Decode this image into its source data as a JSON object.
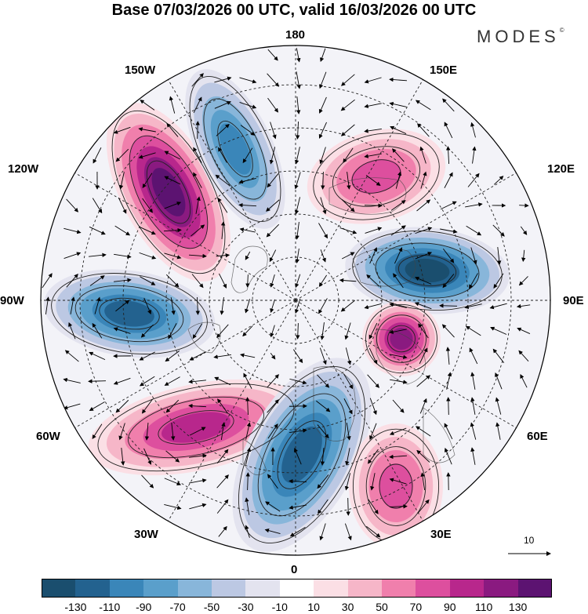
{
  "title": "Base 07/03/2026 00 UTC, valid 16/03/2026 00 UTC",
  "brand": "MODES",
  "brand_mark": "©",
  "longitude_labels": {
    "top": "180",
    "top_left": "150W",
    "top_right": "150E",
    "upper_left": "120W",
    "upper_right": "120E",
    "left": "90W",
    "right": "90E",
    "lower_left": "60W",
    "lower_right": "60E",
    "bottom_left": "30W",
    "bottom_right": "30E",
    "bottom": "0"
  },
  "wind_reference_label": "10",
  "colorbar": {
    "ticks": [
      "-130",
      "-110",
      "-90",
      "-70",
      "-50",
      "-30",
      "-10",
      "10",
      "30",
      "50",
      "70",
      "90",
      "110",
      "130"
    ],
    "colors": [
      "#1a4e6e",
      "#23628f",
      "#3a86b9",
      "#5a9fcb",
      "#88b6da",
      "#bcc8e3",
      "#e3e3ef",
      "#ffffff",
      "#fbdfe5",
      "#f6b6c8",
      "#f07fac",
      "#dd4f9e",
      "#b8278c",
      "#8a1a80",
      "#5c1371"
    ]
  },
  "map_features": {
    "anomaly_centers": [
      {
        "label": "positive anomaly 150W-120W",
        "value": 130
      },
      {
        "label": "negative anomaly 160W",
        "value": -90
      },
      {
        "label": "negative anomaly 90W",
        "value": -110
      },
      {
        "label": "positive anomaly 120E-150E",
        "value": 70
      },
      {
        "label": "negative anomaly 100E",
        "value": -130
      },
      {
        "label": "positive anomaly 70E",
        "value": 110
      },
      {
        "label": "positive anomaly 60W",
        "value": 90
      },
      {
        "label": "negative anomaly 0-20E",
        "value": -110
      },
      {
        "label": "positive anomaly 30E",
        "value": 70
      }
    ]
  }
}
